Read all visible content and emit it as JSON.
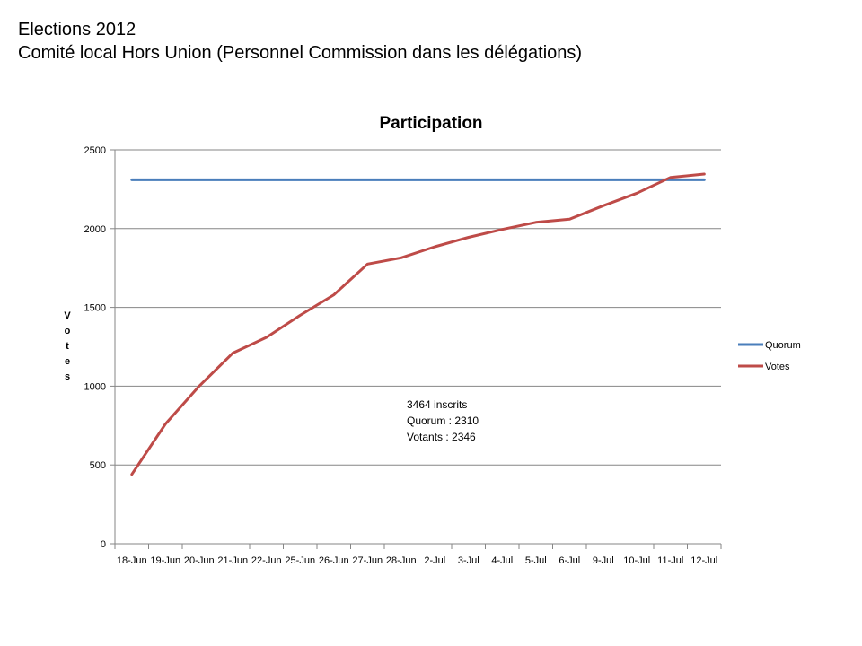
{
  "header": {
    "line1": "Elections 2012",
    "line2": "Comité local Hors Union (Personnel Commission dans les délégations)"
  },
  "chart_data": {
    "type": "line",
    "title": "Participation",
    "ylabel": "Votes",
    "xlabel": "",
    "ylim": [
      0,
      2500
    ],
    "yticks": [
      0,
      500,
      1000,
      1500,
      2000,
      2500
    ],
    "grid": true,
    "legend_position": "right",
    "categories": [
      "18-Jun",
      "19-Jun",
      "20-Jun",
      "21-Jun",
      "22-Jun",
      "25-Jun",
      "26-Jun",
      "27-Jun",
      "28-Jun",
      "2-Jul",
      "3-Jul",
      "4-Jul",
      "5-Jul",
      "6-Jul",
      "9-Jul",
      "10-Jul",
      "11-Jul",
      "12-Jul"
    ],
    "series": [
      {
        "name": "Quorum",
        "color": "#4a7ebb",
        "values": [
          2310,
          2310,
          2310,
          2310,
          2310,
          2310,
          2310,
          2310,
          2310,
          2310,
          2310,
          2310,
          2310,
          2310,
          2310,
          2310,
          2310,
          2310
        ]
      },
      {
        "name": "Votes",
        "color": "#be4b48",
        "values": [
          440,
          760,
          1000,
          1210,
          1310,
          1450,
          1580,
          1775,
          1815,
          1885,
          1945,
          1995,
          2040,
          2060,
          2145,
          2225,
          2325,
          2346
        ]
      }
    ],
    "annotations": [
      "3464  inscrits",
      "Quorum : 2310",
      "Votants : 2346"
    ]
  }
}
